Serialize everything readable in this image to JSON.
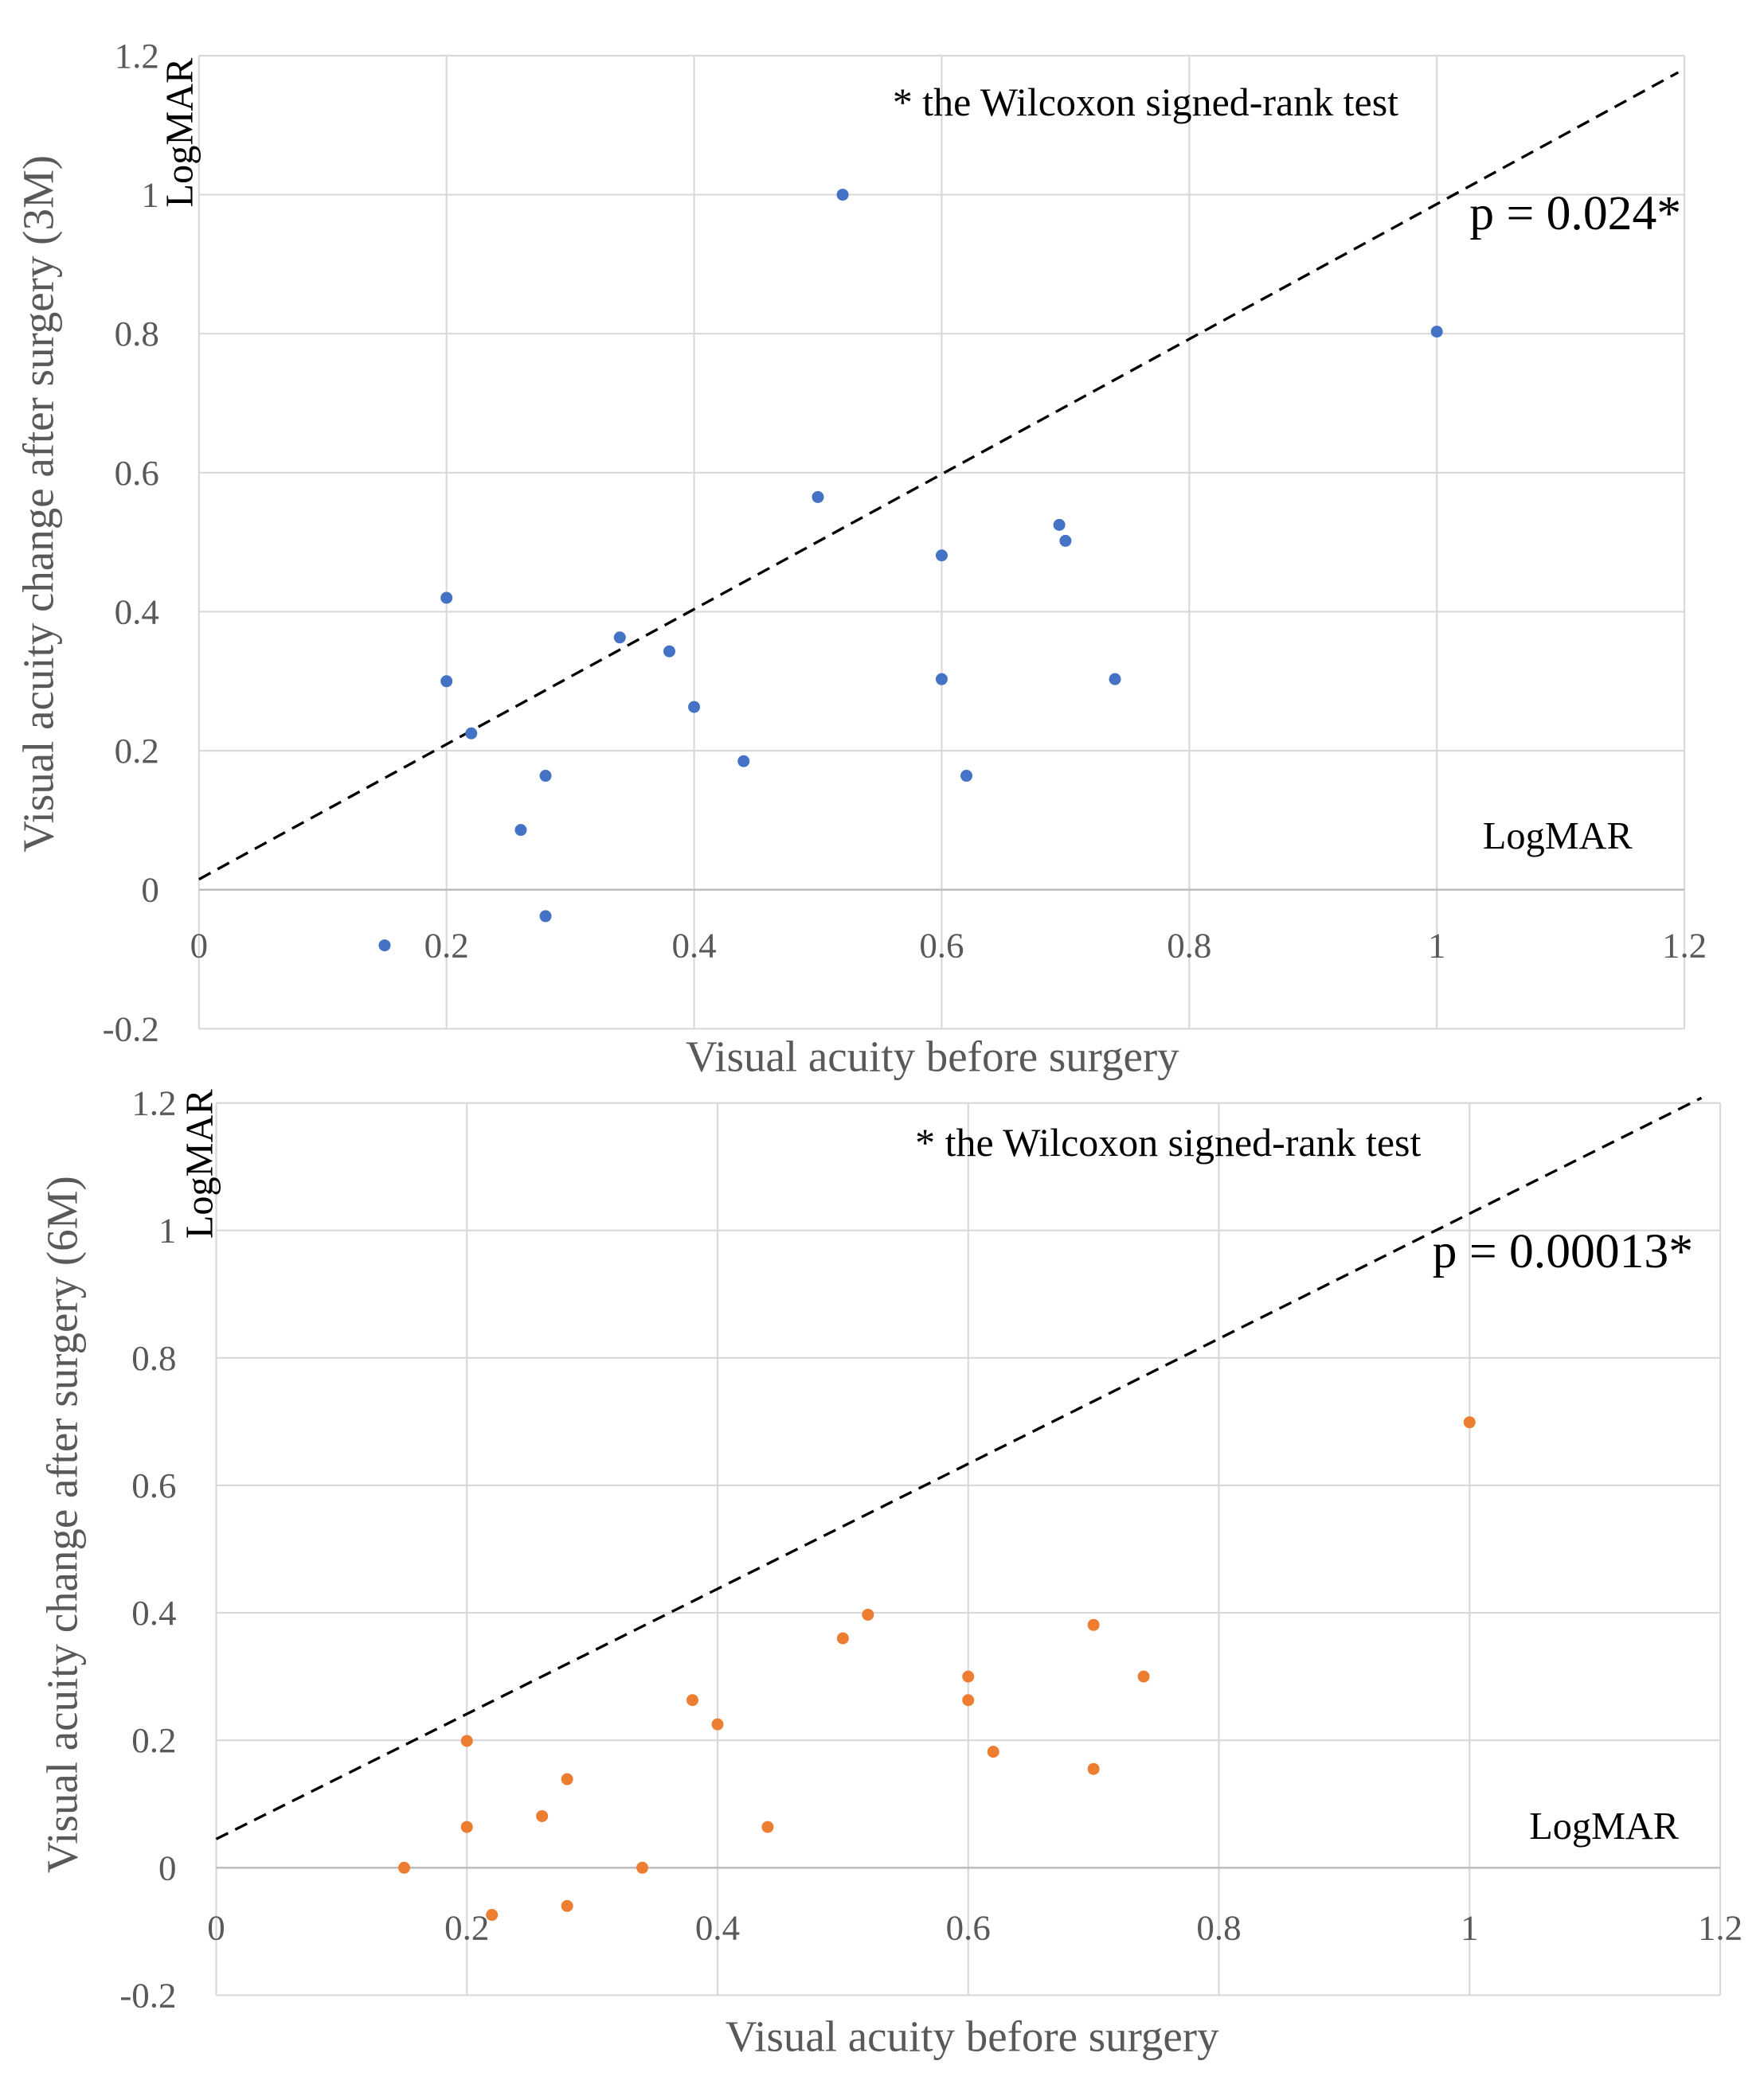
{
  "chart_data": [
    {
      "type": "scatter",
      "title": "",
      "xlabel": "Visual acuity before surgery",
      "ylabel": "Visual acuity change after surgery (3M)",
      "xlim": [
        0,
        1.2
      ],
      "ylim": [
        -0.2,
        1.2
      ],
      "grid": true,
      "x_ticks": [
        "0",
        "0.2",
        "0.4",
        "0.6",
        "0.8",
        "1",
        "1.2"
      ],
      "y_ticks": [
        "-0.2",
        "0",
        "0.2",
        "0.4",
        "0.6",
        "0.8",
        "1",
        "1.2"
      ],
      "y_unit": "LogMAR",
      "x_unit": "LogMAR",
      "annotation": "* the Wilcoxon signed-rank test",
      "p_value": "p = 0.024*",
      "color": "#4472C4",
      "reference_line": {
        "style": "dashed",
        "from": [
          0,
          0.015
        ],
        "to": [
          1.195,
          1.176
        ]
      },
      "points": [
        [
          0.15,
          -0.08
        ],
        [
          0.2,
          0.42
        ],
        [
          0.2,
          0.3
        ],
        [
          0.22,
          0.225
        ],
        [
          0.26,
          0.086
        ],
        [
          0.28,
          0.164
        ],
        [
          0.28,
          -0.038
        ],
        [
          0.34,
          0.363
        ],
        [
          0.38,
          0.343
        ],
        [
          0.4,
          0.263
        ],
        [
          0.44,
          0.185
        ],
        [
          0.5,
          0.565
        ],
        [
          0.52,
          1.0
        ],
        [
          0.6,
          0.481
        ],
        [
          0.6,
          0.303
        ],
        [
          0.62,
          0.164
        ],
        [
          0.695,
          0.525
        ],
        [
          0.7,
          0.502
        ],
        [
          0.74,
          0.303
        ],
        [
          1.0,
          0.803
        ]
      ]
    },
    {
      "type": "scatter",
      "title": "",
      "xlabel": "Visual acuity before surgery",
      "ylabel": "Visual acuity change after surgery (6M)",
      "xlim": [
        0,
        1.2
      ],
      "ylim": [
        -0.2,
        1.2
      ],
      "grid": true,
      "x_ticks": [
        "0",
        "0.2",
        "0.4",
        "0.6",
        "0.8",
        "1",
        "1.2"
      ],
      "y_ticks": [
        "-0.2",
        "0",
        "0.2",
        "0.4",
        "0.6",
        "0.8",
        "1",
        "1.2"
      ],
      "y_unit": "LogMAR",
      "x_unit": "LogMAR",
      "annotation": "* the Wilcoxon signed-rank test",
      "p_value": "p = 0.00013*",
      "color": "#ED7D31",
      "reference_line": {
        "style": "dashed",
        "from": [
          0,
          0.045
        ],
        "to": [
          1.185,
          1.208
        ]
      },
      "points": [
        [
          0.15,
          0.0
        ],
        [
          0.2,
          0.199
        ],
        [
          0.2,
          0.064
        ],
        [
          0.22,
          -0.074
        ],
        [
          0.26,
          0.081
        ],
        [
          0.28,
          0.139
        ],
        [
          0.28,
          -0.06
        ],
        [
          0.34,
          0.0
        ],
        [
          0.38,
          0.263
        ],
        [
          0.4,
          0.225
        ],
        [
          0.44,
          0.064
        ],
        [
          0.5,
          0.36
        ],
        [
          0.52,
          0.397
        ],
        [
          0.6,
          0.3
        ],
        [
          0.6,
          0.263
        ],
        [
          0.62,
          0.182
        ],
        [
          0.7,
          0.381
        ],
        [
          0.7,
          0.155
        ],
        [
          0.74,
          0.3
        ],
        [
          1.0,
          0.699
        ]
      ]
    }
  ]
}
